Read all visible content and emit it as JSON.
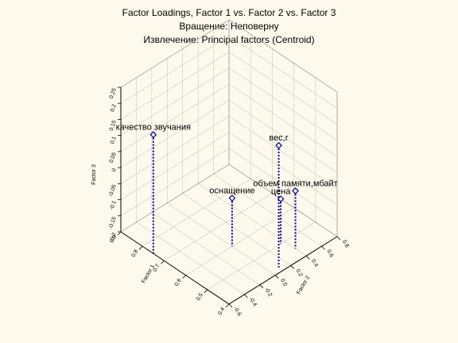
{
  "titles": {
    "line1": "Factor Loadings, Factor 1 vs. Factor 2 vs. Factor 3",
    "line2": "Вращение: Неповерну",
    "line3": "Извлечение: Principal factors (Centroid)"
  },
  "chart_data": {
    "type": "scatter",
    "projection": "3d",
    "title": "Factor Loadings, Factor 1 vs. Factor 2 vs. Factor 3",
    "subtitle": [
      "Вращение: Неповерну",
      "Извлечение: Principal factors (Centroid)"
    ],
    "axes": {
      "x": {
        "label": "Factor 1",
        "ticks": [
          "0.9",
          "0.8",
          "0.7",
          "0.6",
          "0.5",
          "0.4"
        ]
      },
      "y": {
        "label": "Factor 2",
        "ticks": [
          "0.8",
          "0.6",
          "0.4",
          "0.2",
          "0.0",
          "-0.2",
          "-0.4",
          "-0.6"
        ]
      },
      "z": {
        "label": "Factor 3",
        "ticks": [
          "0.25",
          "0.2",
          "0.15",
          "0.1",
          "0.05",
          "0",
          "-0.05",
          "-0.1",
          "-0.15",
          "-0.2"
        ]
      }
    },
    "grid": true,
    "marker_color": "#00008b",
    "points": [
      {
        "label": "качество звучания",
        "f1": 0.75,
        "f2": -0.6,
        "f3": 0.17
      },
      {
        "label": "оснащение",
        "f1": 0.6,
        "f2": 0.0,
        "f3": -0.05
      },
      {
        "label": "вес,г",
        "f1": 0.42,
        "f2": 0.1,
        "f3": 0.18
      },
      {
        "label": "цена",
        "f1": 0.5,
        "f2": 0.35,
        "f3": -0.06
      },
      {
        "label": "объем памяти,мбайт",
        "f1": 0.45,
        "f2": 0.4,
        "f3": -0.02
      }
    ]
  }
}
